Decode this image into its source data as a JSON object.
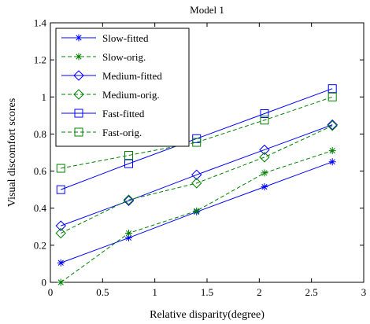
{
  "chart_data": {
    "type": "line",
    "title": "Model 1",
    "xlabel": "Relative disparity(degree)",
    "ylabel": "Visual discomfort scores",
    "xlim": [
      0,
      3
    ],
    "ylim": [
      0,
      1.4
    ],
    "xticks": [
      0,
      0.5,
      1,
      1.5,
      2,
      2.5,
      3
    ],
    "xtick_labels": [
      "0",
      "0.5",
      "1",
      "1.5",
      "2",
      "2.5",
      "3"
    ],
    "yticks": [
      0,
      0.2,
      0.4,
      0.6,
      0.8,
      1,
      1.2,
      1.4
    ],
    "ytick_labels": [
      "0",
      "0.2",
      "0.4",
      "0.6",
      "0.8",
      "1",
      "1.2",
      "1.4"
    ],
    "grid": false,
    "legend_position": "top-left",
    "x": [
      0.1,
      0.75,
      1.4,
      2.05,
      2.7
    ],
    "series": [
      {
        "name": "Slow-fitted",
        "values": [
          0.105,
          0.24,
          0.38,
          0.515,
          0.65
        ],
        "color": "#0000ff",
        "line": "solid",
        "marker": "star"
      },
      {
        "name": "Slow-orig.",
        "values": [
          0.0,
          0.265,
          0.385,
          0.59,
          0.71
        ],
        "color": "#008000",
        "line": "dashed",
        "marker": "star"
      },
      {
        "name": "Medium-fitted",
        "values": [
          0.305,
          0.44,
          0.58,
          0.715,
          0.85
        ],
        "color": "#0000ff",
        "line": "solid",
        "marker": "diamond"
      },
      {
        "name": "Medium-orig.",
        "values": [
          0.265,
          0.445,
          0.535,
          0.675,
          0.845
        ],
        "color": "#008000",
        "line": "dashed",
        "marker": "diamond"
      },
      {
        "name": "Fast-fitted",
        "values": [
          0.5,
          0.64,
          0.775,
          0.91,
          1.045
        ],
        "color": "#0000ff",
        "line": "solid",
        "marker": "square"
      },
      {
        "name": "Fast-orig.",
        "values": [
          0.615,
          0.685,
          0.755,
          0.875,
          1.0
        ],
        "color": "#008000",
        "line": "dashed",
        "marker": "square"
      }
    ]
  }
}
